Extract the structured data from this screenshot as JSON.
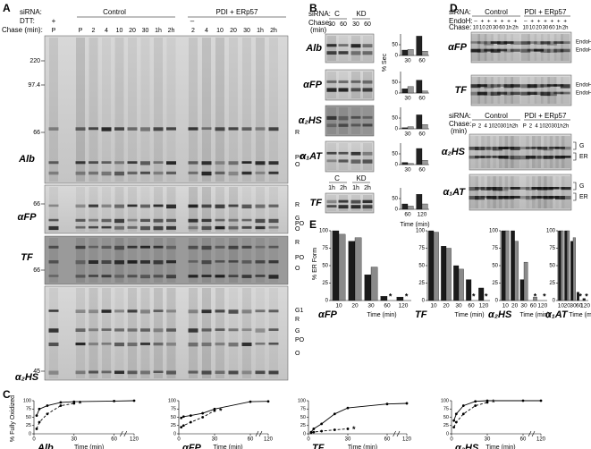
{
  "A": {
    "label": "A",
    "sirna": "siRNA:",
    "groups": [
      "Control",
      "PDI + ERp57"
    ],
    "dtt": "DTT:",
    "dtt_signs": [
      "+",
      "–"
    ],
    "chase": "Chase (min):",
    "lanes": [
      "P",
      "P",
      "2",
      "4",
      "10",
      "20",
      "30",
      "1h",
      "2h",
      "2",
      "4",
      "10",
      "20",
      "30",
      "1h",
      "2h"
    ],
    "gels": [
      {
        "name": "Alb",
        "mw": [
          "220",
          "97.4",
          "66"
        ],
        "bands": [
          "R",
          "PO",
          "O"
        ]
      },
      {
        "name": "αFP",
        "mw": [
          "66"
        ],
        "bands": [
          "R",
          "G",
          "PO",
          "O"
        ]
      },
      {
        "name": "TF",
        "mw": [
          "66"
        ],
        "bands": [
          "R",
          "PO",
          "O"
        ]
      },
      {
        "name": "α₂HS",
        "mw": [
          "45"
        ],
        "bands": [
          "G1",
          "R",
          "G",
          "PO",
          "O"
        ]
      }
    ]
  },
  "B": {
    "label": "B",
    "sirna": "siRNA:",
    "groups": [
      "C",
      "KD"
    ],
    "chase": "Chase:",
    "chase_unit": "(min)",
    "lanes": [
      "30",
      "60",
      "30",
      "60"
    ],
    "gels": [
      "Alb",
      "αFP",
      "α₂HS",
      "α₁AT",
      "TF"
    ],
    "tf_groups": [
      "C",
      "KD"
    ],
    "tf_lanes": [
      "1h",
      "2h",
      "1h",
      "2h"
    ],
    "ylabel": "% Sec",
    "xlabel": "Time (min)",
    "charts": [
      {
        "type": "bar",
        "categories": [
          "30",
          "60"
        ],
        "ylim": [
          0,
          100
        ],
        "yticks": [
          0,
          50
        ],
        "series": [
          {
            "color": "#222",
            "values": [
              25,
              90
            ]
          },
          {
            "color": "#999",
            "values": [
              28,
              20
            ]
          }
        ]
      },
      {
        "type": "bar",
        "categories": [
          "30",
          "60"
        ],
        "ylim": [
          0,
          100
        ],
        "yticks": [
          0,
          50
        ],
        "series": [
          {
            "color": "#222",
            "values": [
              20,
              60
            ]
          },
          {
            "color": "#999",
            "values": [
              30,
              10
            ]
          }
        ]
      },
      {
        "type": "bar",
        "categories": [
          "30",
          "60"
        ],
        "ylim": [
          0,
          100
        ],
        "yticks": [
          0,
          50
        ],
        "series": [
          {
            "color": "#222",
            "values": [
              5,
              65
            ]
          },
          {
            "color": "#999",
            "values": [
              10,
              20
            ]
          }
        ]
      },
      {
        "type": "bar",
        "categories": [
          "30",
          "60"
        ],
        "ylim": [
          0,
          100
        ],
        "yticks": [
          0,
          50
        ],
        "series": [
          {
            "color": "#222",
            "values": [
              10,
              75
            ]
          },
          {
            "color": "#999",
            "values": [
              5,
              20
            ]
          }
        ]
      },
      {
        "type": "bar",
        "categories": [
          "60",
          "120"
        ],
        "ylim": [
          0,
          100
        ],
        "yticks": [
          0,
          50
        ],
        "series": [
          {
            "color": "#222",
            "values": [
              25,
              70
            ]
          },
          {
            "color": "#999",
            "values": [
              15,
              25
            ]
          }
        ]
      }
    ]
  },
  "C": {
    "label": "C",
    "ylabel": "% Fully Oxidized",
    "xlabel": "Time (min)",
    "charts": [
      {
        "type": "line",
        "name": "Alb",
        "x": [
          2,
          4,
          10,
          20,
          30,
          60,
          120
        ],
        "xticks": [
          0,
          30,
          60,
          120
        ],
        "ylim": [
          0,
          100
        ],
        "yticks": [
          0,
          25,
          50,
          75,
          100
        ],
        "series": [
          {
            "color": "#000",
            "dash": false,
            "values": [
              55,
              75,
              85,
              95,
              97,
              99,
              100
            ]
          },
          {
            "color": "#000",
            "dash": true,
            "values": [
              15,
              35,
              60,
              85,
              92,
              null,
              null
            ]
          }
        ],
        "annotations": [
          {
            "text": "*",
            "x": 30
          }
        ]
      },
      {
        "type": "line",
        "name": "αFP",
        "x": [
          2,
          4,
          10,
          20,
          30,
          60,
          120
        ],
        "xticks": [
          0,
          30,
          60,
          120
        ],
        "ylim": [
          0,
          100
        ],
        "yticks": [
          0,
          25,
          50,
          75,
          100
        ],
        "series": [
          {
            "color": "#000",
            "dash": false,
            "values": [
              48,
              52,
              55,
              62,
              75,
              97,
              98
            ]
          },
          {
            "color": "#000",
            "dash": true,
            "values": [
              20,
              25,
              35,
              50,
              70,
              null,
              null
            ]
          }
        ],
        "annotations": [
          {
            "text": "*",
            "x": 30
          }
        ]
      },
      {
        "type": "line",
        "name": "TF",
        "x": [
          2,
          4,
          10,
          20,
          30,
          60,
          120
        ],
        "xticks": [
          0,
          30,
          60,
          120
        ],
        "ylim": [
          0,
          100
        ],
        "yticks": [
          0,
          25,
          50,
          75,
          100
        ],
        "series": [
          {
            "color": "#000",
            "dash": false,
            "values": [
              5,
              15,
              30,
              60,
              78,
              90,
              92
            ]
          },
          {
            "color": "#000",
            "dash": true,
            "values": [
              3,
              5,
              8,
              12,
              15,
              null,
              null
            ]
          }
        ],
        "annotations": [
          {
            "text": "*",
            "x": 30
          }
        ]
      },
      {
        "type": "line",
        "name": "α₂HS",
        "x": [
          2,
          4,
          10,
          20,
          30,
          60,
          120
        ],
        "xticks": [
          0,
          30,
          60,
          120
        ],
        "ylim": [
          0,
          100
        ],
        "yticks": [
          0,
          25,
          50,
          75,
          100
        ],
        "series": [
          {
            "color": "#000",
            "dash": false,
            "values": [
              40,
              60,
              85,
              98,
              100,
              100,
              100
            ]
          },
          {
            "color": "#000",
            "dash": true,
            "values": [
              20,
              35,
              60,
              85,
              95,
              null,
              null
            ]
          }
        ],
        "annotations": [
          {
            "text": "*",
            "x": 30
          }
        ]
      }
    ]
  },
  "D": {
    "label": "D",
    "sirna": "siRNA:",
    "groups": [
      "Control",
      "PDI + ERp57"
    ],
    "endoh": "EndoH:",
    "chase": "Chase:",
    "chase_unit": "(min)",
    "endoh_signs": [
      "–",
      "+",
      "+",
      "+",
      "+",
      "+",
      "+",
      "–",
      "+",
      "+",
      "+",
      "+",
      "+",
      "+"
    ],
    "lanes": [
      "10",
      "10",
      "20",
      "30",
      "60",
      "1h",
      "2h",
      "10",
      "10",
      "20",
      "30",
      "60",
      "1h",
      "2h"
    ],
    "gels": [
      "αFP",
      "TF"
    ],
    "gel_bands": [
      "EndoHᴿ",
      "EndoHˢ"
    ],
    "lower_lanes": [
      "P",
      "2",
      "4",
      "10",
      "20",
      "30",
      "1h",
      "2h",
      "P",
      "2",
      "4",
      "10",
      "20",
      "30",
      "1h",
      "2h"
    ],
    "lower_gels": [
      "α₂HS",
      "α₁AT"
    ],
    "lower_bands": [
      "G",
      "ER"
    ]
  },
  "E": {
    "label": "E",
    "ylabel": "% ER Form",
    "xlabel": "Time (min)",
    "charts": [
      {
        "type": "bar",
        "name": "αFP",
        "categories": [
          "10",
          "20",
          "30",
          "60",
          "120"
        ],
        "ylim": [
          0,
          100
        ],
        "yticks": [
          0,
          25,
          50,
          75,
          100
        ],
        "series": [
          {
            "color": "#1a1a1a",
            "values": [
              100,
              85,
              37,
              6,
              5
            ]
          },
          {
            "color": "#8a8a8a",
            "values": [
              95,
              90,
              48,
              0,
              0
            ]
          }
        ],
        "annotations": [
          {
            "text": "*",
            "x": "60"
          },
          {
            "text": "*",
            "x": "120"
          }
        ]
      },
      {
        "type": "bar",
        "name": "TF",
        "categories": [
          "10",
          "20",
          "30",
          "60",
          "120"
        ],
        "ylim": [
          0,
          100
        ],
        "yticks": [
          0,
          25,
          50,
          75,
          100
        ],
        "series": [
          {
            "color": "#1a1a1a",
            "values": [
              100,
              78,
              50,
              30,
              18
            ]
          },
          {
            "color": "#8a8a8a",
            "values": [
              98,
              75,
              45,
              0,
              0
            ]
          }
        ],
        "annotations": [
          {
            "text": "*",
            "x": "60"
          },
          {
            "text": "*",
            "x": "120"
          }
        ]
      },
      {
        "type": "bar",
        "name": "α₂HS",
        "categories": [
          "10",
          "20",
          "30",
          "60",
          "120"
        ],
        "ylim": [
          0,
          100
        ],
        "yticks": [
          0,
          25,
          50,
          75,
          100
        ],
        "series": [
          {
            "color": "#1a1a1a",
            "values": [
              100,
              100,
              30,
              0,
              0
            ]
          },
          {
            "color": "#8a8a8a",
            "values": [
              100,
              85,
              55,
              5,
              0
            ]
          }
        ],
        "annotations": [
          {
            "text": "*",
            "x": "60"
          },
          {
            "text": "*",
            "x": "120"
          }
        ]
      },
      {
        "type": "bar",
        "name": "α₁AT",
        "categories": [
          "10",
          "20",
          "30",
          "60",
          "120"
        ],
        "ylim": [
          0,
          100
        ],
        "yticks": [
          0,
          25,
          50,
          75,
          100
        ],
        "series": [
          {
            "color": "#1a1a1a",
            "values": [
              100,
              100,
              85,
              12,
              3
            ]
          },
          {
            "color": "#8a8a8a",
            "values": [
              100,
              100,
              90,
              0,
              0
            ]
          }
        ],
        "annotations": [
          {
            "text": "*",
            "x": "60"
          },
          {
            "text": "*",
            "x": "120"
          }
        ]
      }
    ]
  }
}
